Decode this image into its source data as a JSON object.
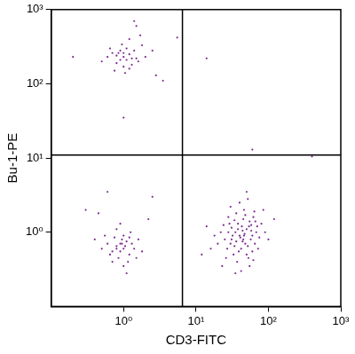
{
  "chart_data": {
    "type": "scatter",
    "x_label": "CD3-FITC",
    "y_label": "Bu-1-PE",
    "log": true,
    "grid": false,
    "color": "#7b2a8f",
    "xlim": [
      0.1,
      1000
    ],
    "ylim": [
      0.1,
      1000
    ],
    "xticks": [
      {
        "value": 1,
        "label": "10⁰"
      },
      {
        "value": 10,
        "label": "10¹"
      },
      {
        "value": 100,
        "label": "10²"
      },
      {
        "value": 1000,
        "label": "10³"
      }
    ],
    "yticks": [
      {
        "value": 1,
        "label": "10⁰"
      },
      {
        "value": 10,
        "label": "10¹"
      },
      {
        "value": 100,
        "label": "10²"
      },
      {
        "value": 1000,
        "label": "10³"
      }
    ],
    "gates": {
      "x": 6.5,
      "y": 11
    },
    "x": [
      1.0,
      0.9,
      1.2,
      0.8,
      1.1,
      0.7,
      1.3,
      1.5,
      0.6,
      1.0,
      0.95,
      1.4,
      0.75,
      1.6,
      1.2,
      0.85,
      1.05,
      2.0,
      0.65,
      1.8,
      1.1,
      0.9,
      1.3,
      0.8,
      1.0,
      2.5,
      1.7,
      0.5,
      1.2,
      1.5,
      0.2,
      5.5,
      3.5,
      1.0,
      2.8,
      1.4,
      14,
      0.9,
      1.0,
      0.8,
      1.1,
      0.7,
      1.2,
      0.95,
      0.85,
      1.3,
      0.6,
      1.0,
      0.75,
      1.15,
      0.9,
      1.4,
      0.65,
      1.05,
      0.8,
      1.6,
      0.55,
      1.0,
      1.25,
      0.7,
      1.8,
      0.9,
      0.5,
      1.5,
      0.6,
      0.45,
      2.2,
      0.4,
      1.1,
      0.95,
      0.8,
      1.2,
      0.3,
      2.5,
      40,
      35,
      45,
      50,
      30,
      60,
      38,
      42,
      55,
      28,
      65,
      33,
      48,
      70,
      25,
      36,
      44,
      52,
      58,
      31,
      39,
      47,
      62,
      27,
      34,
      41,
      53,
      68,
      22,
      46,
      37,
      57,
      29,
      43,
      75,
      20,
      32,
      50,
      64,
      24,
      40,
      55,
      80,
      18,
      36,
      48,
      60,
      26,
      45,
      72,
      30,
      52,
      16,
      90,
      42,
      34,
      58,
      38,
      46,
      28,
      66,
      14,
      100,
      23,
      85,
      50,
      35,
      120,
      12,
      400,
      62,
      44,
      54,
      31,
      60
    ],
    "values": [
      230,
      210,
      250,
      190,
      300,
      260,
      180,
      220,
      230,
      170,
      340,
      280,
      150,
      200,
      400,
      260,
      140,
      230,
      300,
      330,
      210,
      280,
      220,
      240,
      260,
      280,
      450,
      200,
      160,
      600,
      230,
      420,
      110,
      35,
      130,
      700,
      220,
      0.7,
      0.6,
      0.65,
      0.75,
      0.55,
      0.5,
      0.8,
      0.45,
      0.7,
      0.7,
      0.9,
      0.85,
      0.4,
      0.55,
      0.6,
      0.5,
      0.65,
      1.1,
      0.8,
      0.9,
      0.35,
      1.0,
      0.4,
      0.55,
      1.3,
      0.6,
      0.45,
      3.5,
      1.8,
      1.5,
      0.8,
      0.28,
      0.7,
      0.6,
      0.85,
      2.0,
      3.0,
      0.9,
      1.0,
      0.8,
      1.1,
      0.7,
      0.9,
      1.3,
      0.6,
      1.4,
      1.0,
      0.7,
      0.5,
      1.7,
      1.2,
      0.8,
      0.75,
      1.05,
      0.65,
      1.25,
      1.15,
      0.55,
      0.95,
      1.6,
      0.6,
      1.45,
      0.85,
      0.45,
      1.0,
      1.0,
      2.0,
      0.4,
      0.8,
      1.3,
      1.2,
      0.85,
      0.7,
      0.9,
      0.5,
      1.9,
      1.25,
      2.5,
      0.35,
      1.3,
      0.9,
      1.8,
      0.7,
      0.55,
      0.45,
      1.5,
      0.6,
      2.2,
      2.8,
      0.6,
      1.0,
      0.3,
      0.65,
      1.05,
      1.1,
      0.9,
      1.6,
      1.4,
      1.2,
      0.8,
      0.35,
      2.0,
      3.5,
      0.28,
      1.5,
      0.5,
      10.5,
      0.42,
      0.75,
      1.2,
      0.8,
      13
    ]
  }
}
